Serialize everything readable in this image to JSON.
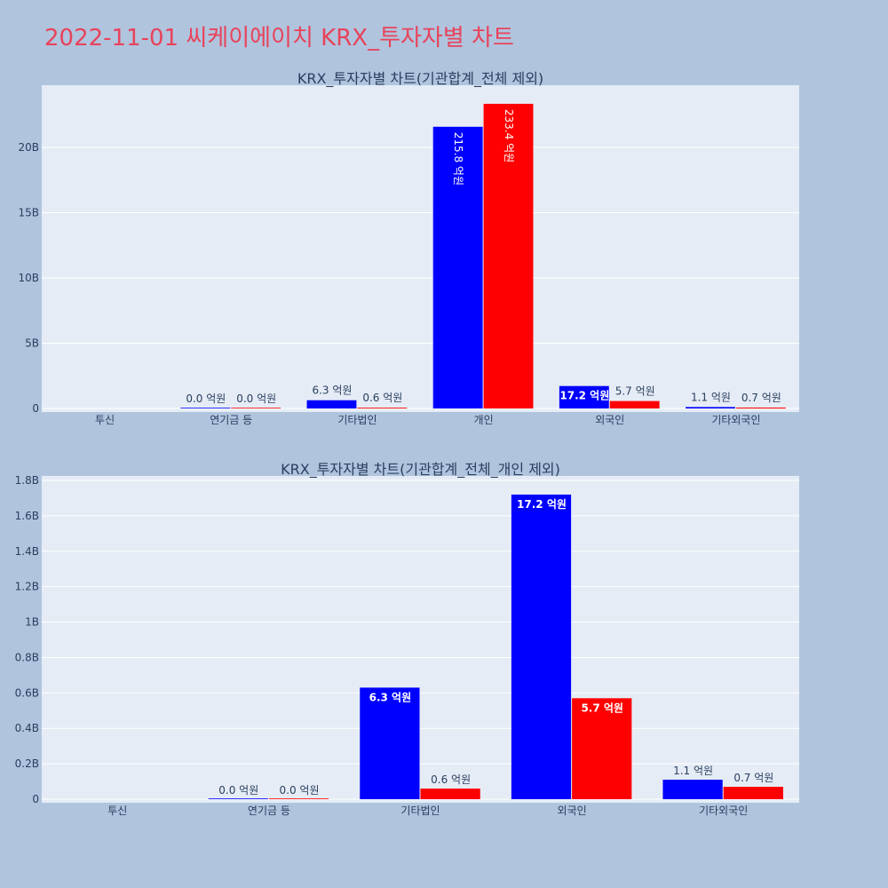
{
  "page": {
    "title": "2022-11-01 씨케이에이치 KRX_투자자별 차트",
    "background": "#b0c4de",
    "title_color": "#e8435a"
  },
  "colors": {
    "series_a": "#0000ff",
    "series_b": "#ff0000",
    "plot_bg": "#e5ecf6"
  },
  "chart_data": [
    {
      "type": "bar",
      "title": "KRX_투자자별 차트(기관합계_전체 제외)",
      "categories": [
        "투신",
        "연기금 등",
        "기타법인",
        "개인",
        "외국인",
        "기타외국인"
      ],
      "ylim": [
        0,
        24000000000
      ],
      "yticks": [
        0,
        5000000000,
        10000000000,
        15000000000,
        20000000000
      ],
      "yticklabels": [
        "0",
        "5B",
        "10B",
        "15B",
        "20B"
      ],
      "grid": true,
      "series": [
        {
          "color": "#0000ff",
          "values": [
            null,
            0,
            630000000,
            21580000000,
            1720000000,
            110000000
          ],
          "labels": [
            "",
            "0.0 억원",
            "6.3 억원",
            "215.8 억원",
            "17.2 억원",
            "1.1 억원"
          ]
        },
        {
          "color": "#ff0000",
          "values": [
            null,
            0,
            60000000,
            23340000000,
            570000000,
            70000000
          ],
          "labels": [
            "",
            "0.0 억원",
            "0.6 억원",
            "233.4 억원",
            "5.7 억원",
            "0.7 억원"
          ]
        }
      ]
    },
    {
      "type": "bar",
      "title": "KRX_투자자별 차트(기관합계_전체_개인 제외)",
      "categories": [
        "투신",
        "연기금 등",
        "기타법인",
        "외국인",
        "기타외국인"
      ],
      "ylim": [
        0,
        1800000000
      ],
      "yticks": [
        0,
        200000000,
        400000000,
        600000000,
        800000000,
        1000000000,
        1200000000,
        1400000000,
        1600000000,
        1800000000
      ],
      "yticklabels": [
        "0",
        "0.2B",
        "0.4B",
        "0.6B",
        "0.8B",
        "1B",
        "1.2B",
        "1.4B",
        "1.6B",
        "1.8B"
      ],
      "grid": true,
      "series": [
        {
          "color": "#0000ff",
          "values": [
            null,
            0,
            630000000,
            1720000000,
            110000000
          ],
          "labels": [
            "",
            "0.0 억원",
            "6.3 억원",
            "17.2 억원",
            "1.1 억원"
          ]
        },
        {
          "color": "#ff0000",
          "values": [
            null,
            0,
            60000000,
            570000000,
            70000000
          ],
          "labels": [
            "",
            "0.0 억원",
            "0.6 억원",
            "5.7 억원",
            "0.7 억원"
          ]
        }
      ]
    }
  ]
}
